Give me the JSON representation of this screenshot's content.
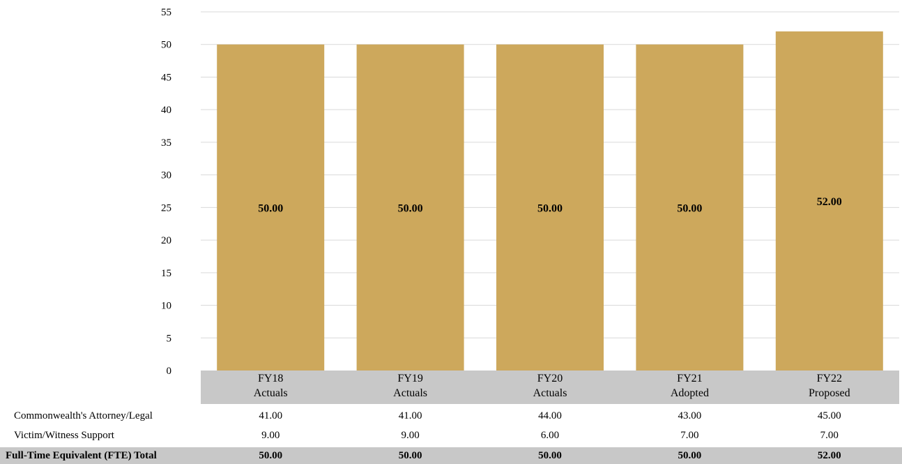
{
  "chart_data": {
    "type": "bar",
    "categories": [
      [
        "FY18",
        "Actuals"
      ],
      [
        "FY19",
        "Actuals"
      ],
      [
        "FY20",
        "Actuals"
      ],
      [
        "FY21",
        "Adopted"
      ],
      [
        "FY22",
        "Proposed"
      ]
    ],
    "values": [
      50.0,
      50.0,
      50.0,
      50.0,
      52.0
    ],
    "value_labels": [
      "50.00",
      "50.00",
      "50.00",
      "50.00",
      "52.00"
    ],
    "ylim": [
      0,
      55
    ],
    "yticks": [
      0,
      5,
      10,
      15,
      20,
      25,
      30,
      35,
      40,
      45,
      50,
      55
    ],
    "grid": true,
    "bar_color": "#cda85c",
    "category_band_color": "#c8c8c8",
    "gridline_color": "#d9d9d9",
    "title": "",
    "xlabel": "",
    "ylabel": ""
  },
  "table": {
    "rows": [
      {
        "label": "Commonwealth's Attorney/Legal",
        "values": [
          "41.00",
          "41.00",
          "44.00",
          "43.00",
          "45.00"
        ],
        "total": false
      },
      {
        "label": "Victim/Witness Support",
        "values": [
          "9.00",
          "9.00",
          "6.00",
          "7.00",
          "7.00"
        ],
        "total": false
      },
      {
        "label": "Full-Time Equivalent (FTE) Total",
        "values": [
          "50.00",
          "50.00",
          "50.00",
          "50.00",
          "52.00"
        ],
        "total": true
      }
    ]
  }
}
